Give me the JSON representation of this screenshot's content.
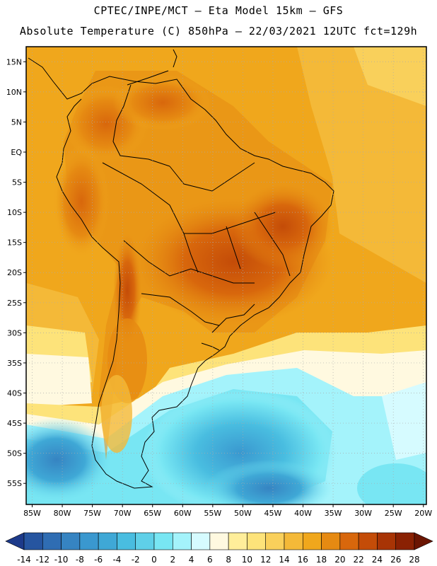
{
  "header": {
    "line1": "CPTEC/INPE/MCT —  Eta Model 15km — GFS",
    "line2": "Absolute Temperature (C) 850hPa — 22/03/2021 12UTC fct=129h"
  },
  "map": {
    "lat_labels": [
      "15N",
      "10N",
      "5N",
      "EQ",
      "5S",
      "10S",
      "15S",
      "20S",
      "25S",
      "30S",
      "35S",
      "40S",
      "45S",
      "50S",
      "55S"
    ],
    "lat_values": [
      15,
      10,
      5,
      0,
      -5,
      -10,
      -15,
      -20,
      -25,
      -30,
      -35,
      -40,
      -45,
      -50,
      -55
    ],
    "lon_labels": [
      "85W",
      "80W",
      "75W",
      "70W",
      "65W",
      "60W",
      "55W",
      "50W",
      "45W",
      "40W",
      "35W",
      "30W",
      "25W",
      "20W"
    ],
    "lon_values": [
      -85,
      -80,
      -75,
      -70,
      -65,
      -60,
      -55,
      -50,
      -45,
      -40,
      -35,
      -30,
      -25,
      -20
    ],
    "lon_range": [
      -86,
      -19.5
    ],
    "lat_range": [
      -58.5,
      17.5
    ],
    "gridlines": true
  },
  "colorbar": {
    "labels": [
      "-14",
      "-12",
      "-10",
      "-8",
      "-6",
      "-4",
      "-2",
      "0",
      "2",
      "4",
      "6",
      "8",
      "10",
      "12",
      "14",
      "16",
      "18",
      "20",
      "22",
      "24",
      "26",
      "28"
    ],
    "colors": [
      "#1d3a8a",
      "#2655a0",
      "#2f6db3",
      "#3684c2",
      "#3a98cf",
      "#3fa8d6",
      "#49bde0",
      "#5fd0e8",
      "#78e6f3",
      "#a4f3fb",
      "#d6fbff",
      "#fff9e0",
      "#ffee9a",
      "#fde37a",
      "#f9d05b",
      "#f4b938",
      "#f0a71c",
      "#e68a12",
      "#d8670c",
      "#c44c08",
      "#a83405",
      "#8a2103",
      "#6b1502"
    ]
  }
}
